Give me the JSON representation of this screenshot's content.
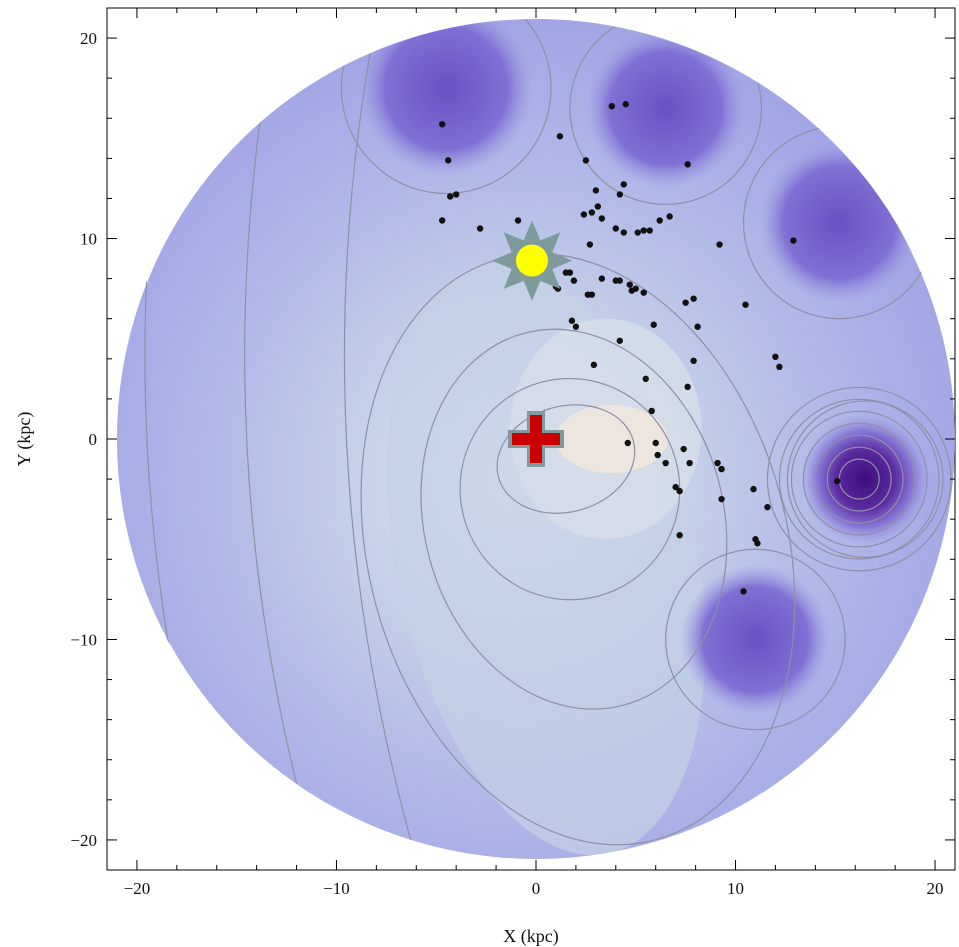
{
  "chart_data": {
    "type": "contour",
    "xlabel": "X (kpc)",
    "ylabel": "Y (kpc)",
    "xlim": [
      -21.5,
      21
    ],
    "ylim": [
      -21.5,
      21.5
    ],
    "xticks": [
      -20,
      -10,
      0,
      10,
      20
    ],
    "yticks": [
      -20,
      -10,
      0,
      10,
      20
    ],
    "x_tick_labels": [
      "−20",
      "−10",
      "0",
      "10",
      "20"
    ],
    "y_tick_labels": [
      "−20",
      "−10",
      "0",
      "10",
      "20"
    ],
    "disk_radius_kpc": 21,
    "colors": {
      "outer": "#a2a6e6",
      "mid": "#b8c4e6",
      "inner": "#d8e0ea",
      "peak": "#f2e8dc",
      "dark": "#7864cf",
      "darkest": "#4a1a8a",
      "contour": "#8f8fa8",
      "sun": "#ffff00",
      "sun_outline": "#7f9a9a",
      "center_cross": "#cc0000"
    },
    "markers": {
      "sun": {
        "x": -0.2,
        "y": 8.9,
        "icon": "sun-icon"
      },
      "galactic_center": {
        "x": 0,
        "y": 0,
        "icon": "cross-icon"
      }
    },
    "dark_regions": [
      {
        "x": -4.5,
        "y": 17.5,
        "r": 3.5
      },
      {
        "x": 6.5,
        "y": 16.5,
        "r": 3.2
      },
      {
        "x": 15.2,
        "y": 10.8,
        "r": 3.2
      },
      {
        "x": 16.5,
        "y": -2.0,
        "r": 2.6
      },
      {
        "x": 11.0,
        "y": -10.0,
        "r": 3.0
      }
    ],
    "points": [
      [
        -4.7,
        15.7
      ],
      [
        -4.4,
        13.9
      ],
      [
        -4.3,
        12.1
      ],
      [
        -4.0,
        12.2
      ],
      [
        -4.7,
        10.9
      ],
      [
        -2.8,
        10.5
      ],
      [
        -0.9,
        10.9
      ],
      [
        -1.0,
        9.3
      ],
      [
        0.9,
        9.0
      ],
      [
        1.5,
        8.3
      ],
      [
        1.7,
        8.3
      ],
      [
        1.0,
        7.6
      ],
      [
        1.1,
        7.5
      ],
      [
        1.9,
        7.9
      ],
      [
        1.8,
        5.9
      ],
      [
        2.0,
        5.6
      ],
      [
        2.6,
        7.2
      ],
      [
        2.8,
        7.2
      ],
      [
        3.3,
        8.0
      ],
      [
        4.0,
        7.9
      ],
      [
        4.2,
        7.9
      ],
      [
        4.7,
        7.7
      ],
      [
        4.8,
        7.4
      ],
      [
        5.0,
        7.5
      ],
      [
        5.4,
        7.3
      ],
      [
        2.7,
        9.7
      ],
      [
        2.4,
        11.2
      ],
      [
        2.8,
        11.3
      ],
      [
        3.1,
        11.6
      ],
      [
        3.3,
        11.0
      ],
      [
        2.5,
        13.9
      ],
      [
        3.0,
        12.4
      ],
      [
        4.2,
        12.2
      ],
      [
        4.4,
        12.7
      ],
      [
        1.2,
        15.1
      ],
      [
        3.8,
        16.6
      ],
      [
        4.5,
        16.7
      ],
      [
        7.6,
        13.7
      ],
      [
        4.0,
        10.5
      ],
      [
        4.4,
        10.3
      ],
      [
        5.1,
        10.3
      ],
      [
        5.4,
        10.4
      ],
      [
        5.7,
        10.4
      ],
      [
        6.2,
        10.9
      ],
      [
        6.7,
        11.1
      ],
      [
        9.2,
        9.7
      ],
      [
        12.9,
        9.9
      ],
      [
        7.5,
        6.8
      ],
      [
        7.9,
        7.0
      ],
      [
        8.1,
        5.6
      ],
      [
        10.5,
        6.7
      ],
      [
        5.9,
        5.7
      ],
      [
        4.2,
        4.9
      ],
      [
        2.9,
        3.7
      ],
      [
        5.5,
        3.0
      ],
      [
        7.6,
        2.6
      ],
      [
        7.9,
        3.9
      ],
      [
        5.8,
        1.4
      ],
      [
        12.0,
        4.1
      ],
      [
        12.2,
        3.6
      ],
      [
        4.6,
        -0.2
      ],
      [
        6.0,
        -0.2
      ],
      [
        6.1,
        -0.8
      ],
      [
        6.5,
        -1.2
      ],
      [
        7.0,
        -2.4
      ],
      [
        7.2,
        -2.6
      ],
      [
        7.4,
        -0.5
      ],
      [
        7.7,
        -1.2
      ],
      [
        9.1,
        -1.2
      ],
      [
        9.3,
        -1.5
      ],
      [
        9.3,
        -3.0
      ],
      [
        10.9,
        -2.5
      ],
      [
        11.6,
        -3.4
      ],
      [
        11.0,
        -5.0
      ],
      [
        11.1,
        -5.2
      ],
      [
        7.2,
        -4.8
      ],
      [
        10.4,
        -7.6
      ],
      [
        15.1,
        -2.1
      ]
    ]
  }
}
